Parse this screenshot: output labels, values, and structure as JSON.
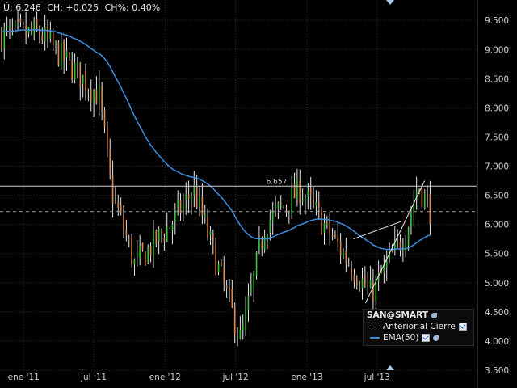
{
  "header": {
    "last": "Ú: 6.246",
    "change": "CH: +0.025",
    "change_pct": "CH%: 0.40%"
  },
  "legend": {
    "title": "SAN@SMART",
    "items": [
      {
        "label": "Anterior al Cierre",
        "style": "dashed",
        "color": "#bdbdbd"
      },
      {
        "label": "EMA(50)",
        "style": "solid",
        "color": "#3d8fe0"
      }
    ]
  },
  "chart_data": {
    "type": "candlestick",
    "title": "",
    "xlabel": "",
    "ylabel": "",
    "x_ticks": [
      {
        "label": "ene '11",
        "date": "2011-01"
      },
      {
        "label": "jul '11",
        "date": "2011-07"
      },
      {
        "label": "ene '12",
        "date": "2012-01"
      },
      {
        "label": "jul '12",
        "date": "2012-07"
      },
      {
        "label": "ene '13",
        "date": "2013-01"
      },
      {
        "label": "jul '13",
        "date": "2013-07"
      }
    ],
    "x_range": [
      "2010-11-01",
      "2014-03-15"
    ],
    "ylim": [
      3.5,
      9.85
    ],
    "y_ticks": [
      "9.500",
      "9.000",
      "8.500",
      "8.000",
      "7.500",
      "7.000",
      "6.500",
      "6.000",
      "5.500",
      "5.000",
      "4.500",
      "4.000",
      "3.500"
    ],
    "grid": true,
    "level_line": {
      "value": 6.657,
      "label": "6.657",
      "color": "#cfcfcf"
    },
    "previous_close": {
      "value": 6.221,
      "style": "dashed"
    },
    "ema_period": 50,
    "ema_color": "#3d8fe0",
    "up_color": "#39c639",
    "down_color": "#e08a50",
    "key_points": [
      {
        "date": "2011-02",
        "value": 9.25
      },
      {
        "date": "2011-07",
        "value": 8.2
      },
      {
        "date": "2011-08",
        "value": 6.6
      },
      {
        "date": "2011-10",
        "value": 5.3
      },
      {
        "date": "2012-01",
        "value": 6.0
      },
      {
        "date": "2012-03",
        "value": 6.6
      },
      {
        "date": "2012-07",
        "value": 4.0
      },
      {
        "date": "2012-09",
        "value": 6.0
      },
      {
        "date": "2012-12",
        "value": 6.6
      },
      {
        "date": "2013-06",
        "value": 4.8
      },
      {
        "date": "2013-09",
        "value": 5.9
      },
      {
        "date": "2013-10",
        "value": 6.7
      },
      {
        "date": "2013-11",
        "value": 6.25
      }
    ],
    "trendlines": [
      {
        "from": {
          "date": "2013-05",
          "value": 5.75
        },
        "to": {
          "date": "2013-09",
          "value": 6.05
        }
      },
      {
        "from": {
          "date": "2013-06",
          "value": 4.65
        },
        "to": {
          "date": "2013-11",
          "value": 6.75
        }
      }
    ]
  }
}
